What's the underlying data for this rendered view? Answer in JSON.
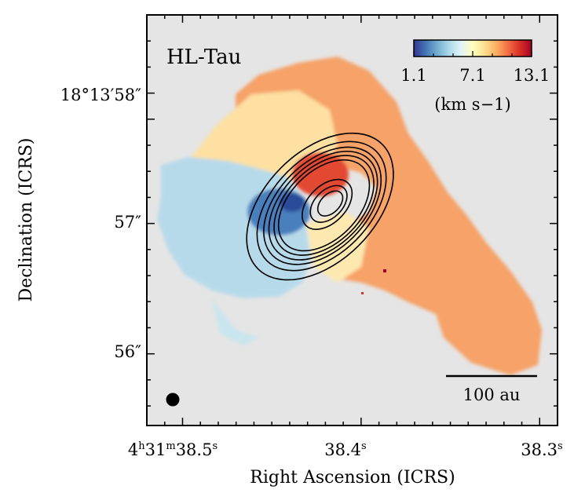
{
  "chart_data": {
    "type": "heatmap",
    "title": "HL-Tau",
    "xlabel": "Right Ascension (ICRS)",
    "ylabel": "Declination (ICRS)",
    "x_ticks": [
      {
        "value": 38.5,
        "h": "4",
        "m": "31",
        "s": "38.5",
        "label_full": "4h31m38.5s"
      },
      {
        "value": 38.4,
        "s": "38.4",
        "label_full": "38.4s"
      },
      {
        "value": 38.3,
        "s": "38.3",
        "label_full": "38.3s"
      }
    ],
    "y_ticks": [
      {
        "value": 57.8,
        "label": "18°13′58″"
      },
      {
        "value": 57.0,
        "label": "57″"
      },
      {
        "value": 56.0,
        "label": "56″"
      }
    ],
    "xlim": [
      38.52,
      38.29
    ],
    "ylim": [
      55.45,
      58.6
    ],
    "colorbar": {
      "ticks": [
        "1.1",
        "7.1",
        "13.1"
      ],
      "min": 1.1,
      "max": 13.1,
      "unit": "(km s−1)",
      "cmap": [
        "#313695",
        "#4575b4",
        "#74add1",
        "#abd9e9",
        "#e0f3f8",
        "#ffffbf",
        "#fee090",
        "#fdae61",
        "#f46d43",
        "#d73027",
        "#a50026"
      ]
    },
    "contours": {
      "center_ra_s": 38.423,
      "center_dec_arcsec": 57.13,
      "count": 9
    },
    "scalebar": {
      "label": "100 au"
    },
    "beam": {
      "shape": "circle"
    }
  }
}
